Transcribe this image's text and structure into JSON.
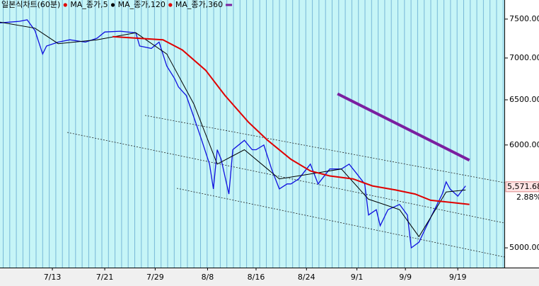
{
  "chart_data": {
    "type": "line",
    "title": "일본식차트(60분)",
    "log_scale": true,
    "ylim": [
      4828,
      7758
    ],
    "yticks": [
      {
        "value": 7500,
        "label": "7500.00"
      },
      {
        "value": 7000,
        "label": "7000.00"
      },
      {
        "value": 6500,
        "label": "6500.00"
      },
      {
        "value": 6000,
        "label": "6000.00"
      },
      {
        "value": 5000,
        "label": "5000.00"
      }
    ],
    "xlim": [
      0,
      130
    ],
    "xticks": [
      {
        "value": 13.5,
        "label": "7/13"
      },
      {
        "value": 27,
        "label": "7/21"
      },
      {
        "value": 40,
        "label": "7/29"
      },
      {
        "value": 53.5,
        "label": "8/8"
      },
      {
        "value": 66,
        "label": "8/16"
      },
      {
        "value": 79,
        "label": "8/24"
      },
      {
        "value": 92,
        "label": "9/1"
      },
      {
        "value": 104.5,
        "label": "9/9"
      },
      {
        "value": 118,
        "label": "9/19"
      }
    ],
    "series": [
      {
        "name": "일본식차트(60분)",
        "color": "#1010e0",
        "marker_color": "#e00000",
        "x": [
          0,
          5,
          7,
          9,
          11,
          12,
          15,
          18,
          22,
          25,
          27,
          31,
          35,
          36,
          39,
          41,
          43,
          45,
          46,
          48,
          50,
          52,
          54,
          55,
          56,
          57,
          59,
          60,
          63,
          65,
          66,
          68,
          70,
          72,
          74,
          75,
          77,
          80,
          82,
          84,
          85,
          88,
          90,
          92,
          94,
          95,
          97,
          98,
          100,
          103,
          105,
          106,
          108,
          110,
          112,
          114,
          115,
          116,
          118,
          120
        ],
        "values": [
          7450,
          7470,
          7490,
          7350,
          7050,
          7150,
          7200,
          7230,
          7200,
          7250,
          7330,
          7340,
          7320,
          7150,
          7120,
          7200,
          6900,
          6750,
          6650,
          6550,
          6300,
          6050,
          5800,
          5550,
          5950,
          5850,
          5500,
          5950,
          6050,
          5950,
          5950,
          6000,
          5750,
          5550,
          5600,
          5600,
          5650,
          5800,
          5600,
          5700,
          5750,
          5750,
          5800,
          5700,
          5600,
          5300,
          5350,
          5200,
          5350,
          5400,
          5300,
          5000,
          5050,
          5200,
          5350,
          5500,
          5620,
          5550,
          5480,
          5580
        ]
      },
      {
        "name": "MA_종가,5",
        "color": "#000000",
        "x": [
          0,
          9,
          15,
          25,
          35,
          43,
          50,
          56,
          63,
          72,
          80,
          88,
          95,
          103,
          108,
          115,
          120
        ],
        "values": [
          7460,
          7380,
          7180,
          7230,
          7320,
          7050,
          6450,
          5800,
          5950,
          5650,
          5700,
          5750,
          5450,
          5350,
          5100,
          5520,
          5540
        ]
      },
      {
        "name": "MA_종가,120",
        "color": "#e00000",
        "x": [
          29,
          42,
          47,
          53,
          58,
          64,
          69,
          75,
          80,
          85,
          91,
          96,
          102,
          107,
          111,
          116,
          121
        ],
        "values": [
          7270,
          7230,
          7100,
          6850,
          6550,
          6250,
          6050,
          5850,
          5730,
          5680,
          5650,
          5580,
          5540,
          5500,
          5440,
          5420,
          5400
        ]
      },
      {
        "name": "MA_종가,360",
        "color": "#7a1fa0",
        "x": [
          87,
          121
        ],
        "values": [
          6570,
          5840
        ]
      }
    ],
    "current_price": {
      "value": 5571.68,
      "label": "5,571.68"
    },
    "annotations": [
      "2.88%"
    ]
  }
}
